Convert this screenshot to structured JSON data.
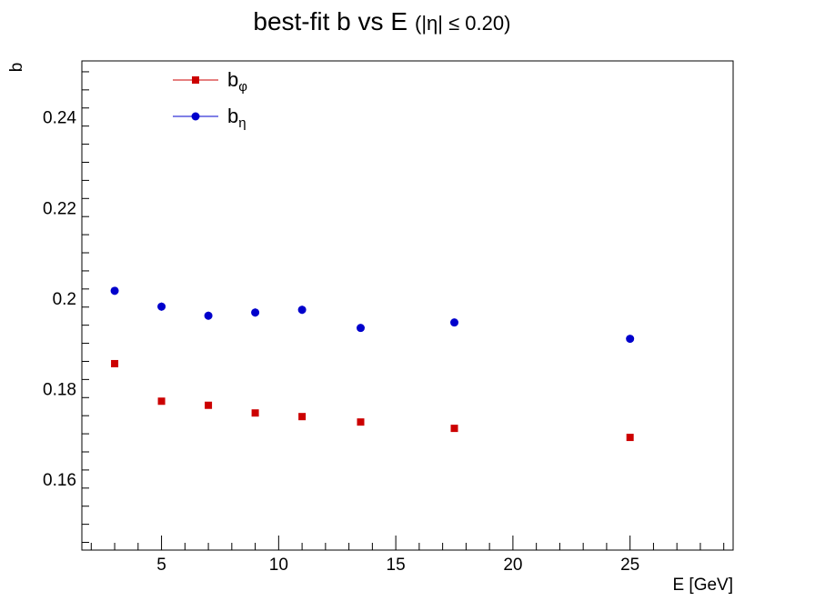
{
  "chart_data": {
    "type": "scatter",
    "title": "best-fit  b  vs  E",
    "title_suffix": "(|η| ≤ 0.20)",
    "xlabel": "E  [GeV]",
    "ylabel": "b",
    "xlim": [
      1.6,
      29.4
    ],
    "ylim": [
      0.1443,
      0.2524
    ],
    "x_ticks": [
      5,
      10,
      15,
      20,
      25
    ],
    "y_ticks": [
      0.16,
      0.18,
      0.2,
      0.22,
      0.24
    ],
    "legend_position": "top-left",
    "grid": false,
    "series": [
      {
        "name": "b",
        "subscript": "φ",
        "color": "#cc0000",
        "marker": "square",
        "x": [
          3,
          5,
          7,
          9,
          11,
          13.5,
          17.5,
          25
        ],
        "y": [
          0.1855,
          0.1772,
          0.1763,
          0.1746,
          0.1738,
          0.1726,
          0.1712,
          0.1692
        ],
        "yerr": [
          0.0003,
          0.0003,
          0.0003,
          0.0003,
          0.0003,
          0.0003,
          0.0003,
          0.0003
        ]
      },
      {
        "name": "b",
        "subscript": "η",
        "color": "#0000cc",
        "marker": "circle",
        "x": [
          3,
          5,
          7,
          9,
          11,
          13.5,
          17.5,
          25
        ],
        "y": [
          0.2016,
          0.1981,
          0.1961,
          0.1968,
          0.1974,
          0.1934,
          0.1946,
          0.191
        ],
        "yerr": [
          0.0008,
          0.0009,
          0.0009,
          0.0009,
          0.0009,
          0.0005,
          0.0005,
          0.0005
        ]
      }
    ]
  }
}
